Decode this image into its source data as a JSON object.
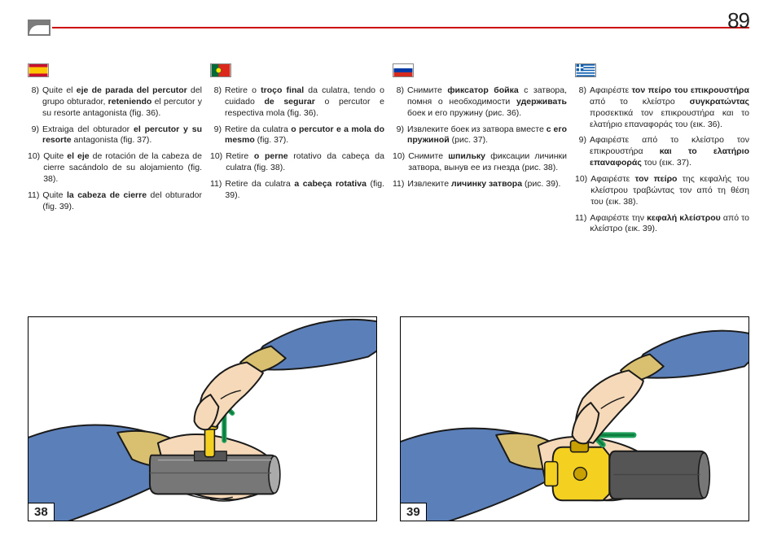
{
  "pageNumber": "89",
  "columns": [
    {
      "flag": "es",
      "items": [
        {
          "n": "8)",
          "html": "Quite el <b>eje de parada del percutor</b> del grupo obturador, <b>reteniendo</b> el percutor y su resorte antagonista (fig. 36)."
        },
        {
          "n": "9)",
          "html": "Extraiga del obturador <b>el percutor y su resorte</b> antagonista (fig. 37)."
        },
        {
          "n": "10)",
          "html": "Quite <b>el eje</b> de rotación de la cabeza de cierre sacándolo de su alojamiento (fig. 38)."
        },
        {
          "n": "11)",
          "html": "Quite <b>la cabeza de cierre</b> del obturador (fig. 39)."
        }
      ]
    },
    {
      "flag": "pt",
      "items": [
        {
          "n": "8)",
          "html": "Retire o <b>troço final</b> da culatra, tendo o cuidado <b>de segurar</b> o percutor e respectiva mola (fig. 36)."
        },
        {
          "n": "9)",
          "html": "Retire da culatra <b>o percutor e a mola do mesmo</b> (fig. 37)."
        },
        {
          "n": "10)",
          "html": "Retire <b>o perne</b> rotativo da cabeça da culatra (fig. 38)."
        },
        {
          "n": "11)",
          "html": "Retire da culatra <b>a cabeça rotativa</b> (fig. 39)."
        }
      ]
    },
    {
      "flag": "ru",
      "items": [
        {
          "n": "8)",
          "html": "Снимите <b>фиксатор бойка</b> с затвора, помня о необходимости <b>удерживать</b> боек и его пружину (рис. 36)."
        },
        {
          "n": "9)",
          "html": "Извлеките боек из затвора вместе <b>с его пружиной</b> (рис. 37)."
        },
        {
          "n": "10)",
          "html": "Снимите <b>шпильку</b> фиксации личинки затвора, вынув ее из гнезда (рис. 38)."
        },
        {
          "n": "11)",
          "html": "Извлеките <b>личинку затвора</b> (рис. 39)."
        }
      ]
    },
    {
      "flag": "gr",
      "items": [
        {
          "n": "8)",
          "html": "Αφαιρέστε <b>τον πείρο του επικρουστήρα</b> από το κλείστρο <b>συγκρατώντας</b> προσεκτικά τον επικρουστήρα και το ελατήριο επαναφοράς του (εικ. 36)."
        },
        {
          "n": "9)",
          "html": "Αφαιρέστε από το κλείστρο τον επικρουστήρα <b>και το ελατήριο επαναφοράς</b> του (εικ. 37)."
        },
        {
          "n": "10)",
          "html": "Αφαιρέστε <b>τον πείρο</b> της κεφαλής του κλείστρου τραβώντας τον από τη θέση του (εικ. 38)."
        },
        {
          "n": "11)",
          "html": "Αφαιρέστε την <b>κεφαλή κλείστρου</b> από το κλείστρο (εικ. 39)."
        }
      ]
    }
  ],
  "figures": [
    {
      "num": "38"
    },
    {
      "num": "39"
    }
  ],
  "colors": {
    "skin": "#f6d9b8",
    "skinShadow": "#e0b88c",
    "shirt": "#5b7fb8",
    "shirtDark": "#3a5c94",
    "cuff": "#d8c070",
    "cuffDark": "#b89a48",
    "metal": "#777",
    "metalDark": "#555",
    "metalLight": "#aaa",
    "yellowPart": "#f4d020",
    "yellowDark": "#c8a000",
    "arrow": "#1fa05a",
    "arrowDark": "#0d7a3e",
    "line": "#1a1a1a"
  }
}
